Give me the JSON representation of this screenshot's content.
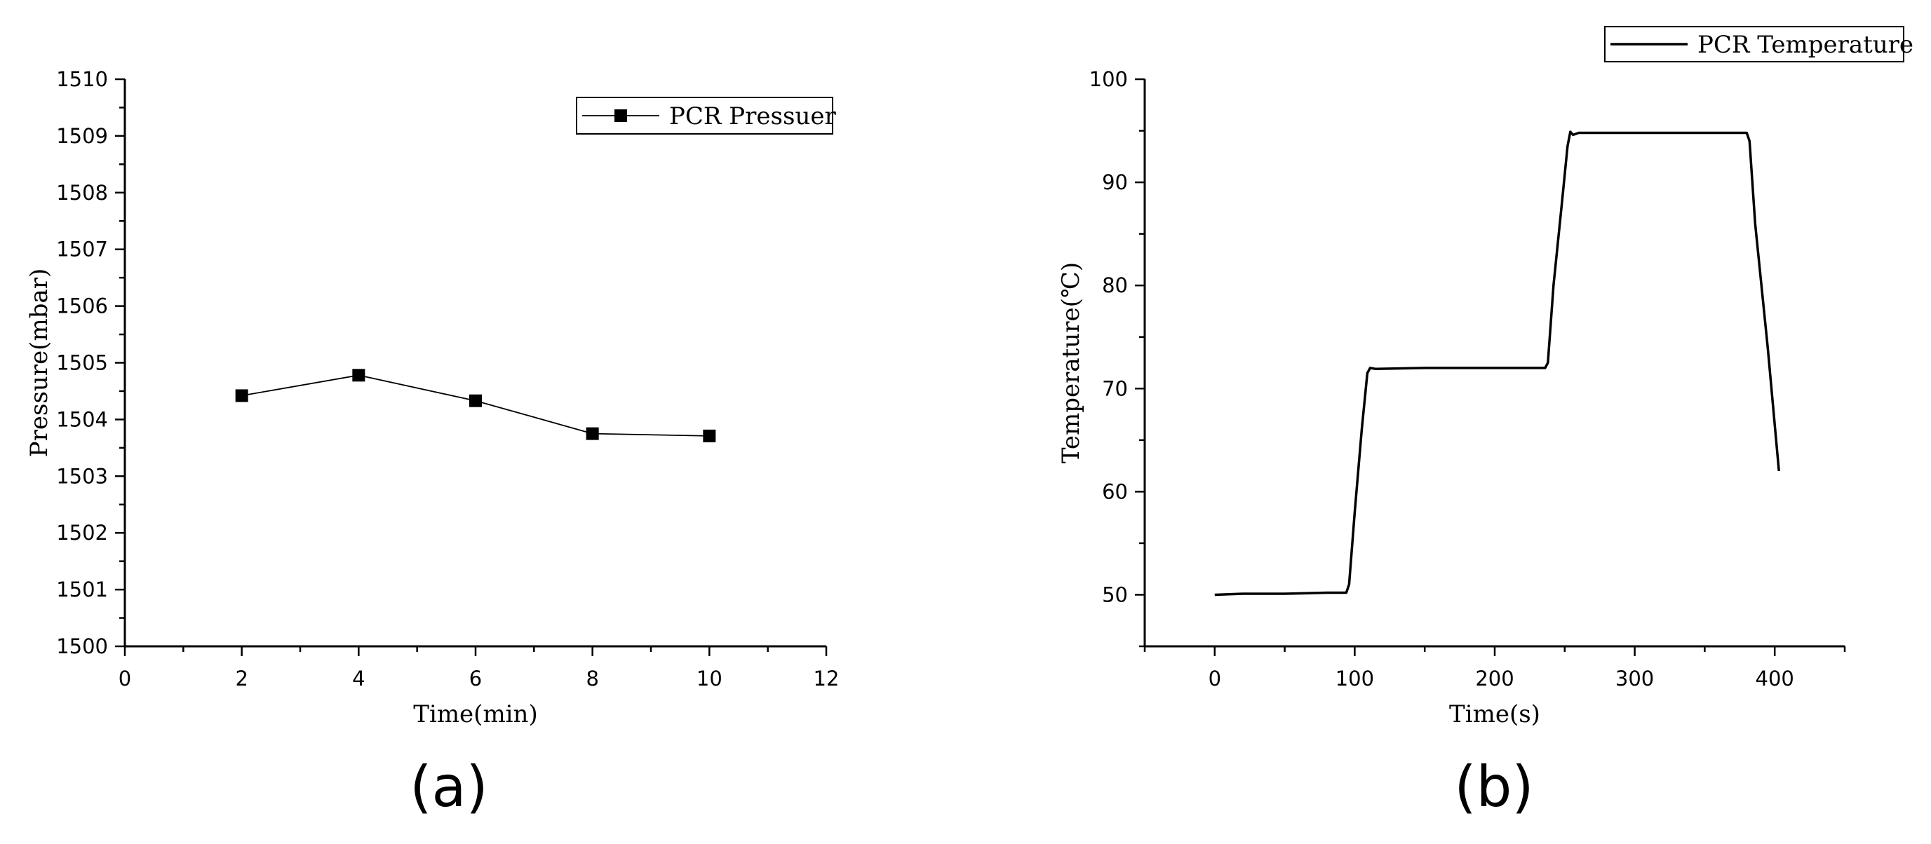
{
  "chart_data": [
    {
      "type": "line",
      "panel_label": "(a)",
      "xlabel": "Time(min)",
      "ylabel": "Pressure(mbar)",
      "xlim": [
        0,
        12
      ],
      "ylim": [
        1500,
        1510
      ],
      "x_ticks": [
        "0",
        "2",
        "4",
        "6",
        "8",
        "10",
        "12"
      ],
      "y_ticks": [
        "1500",
        "1501",
        "1502",
        "1503",
        "1504",
        "1505",
        "1506",
        "1507",
        "1508",
        "1509",
        "1510"
      ],
      "grid": false,
      "legend_position": "top-right",
      "series": [
        {
          "name": "PCR Pressuer",
          "marker": "square",
          "x": [
            2,
            4,
            6,
            8,
            10
          ],
          "y": [
            1504.42,
            1504.78,
            1504.33,
            1503.75,
            1503.71
          ]
        }
      ]
    },
    {
      "type": "line",
      "panel_label": "(b)",
      "xlabel": "Time(s)",
      "ylabel": "Temperature(℃)",
      "xlim": [
        -50,
        450
      ],
      "ylim": [
        45,
        100
      ],
      "x_ticks": [
        "0",
        "100",
        "200",
        "300",
        "400"
      ],
      "y_ticks": [
        "50",
        "60",
        "70",
        "80",
        "90",
        "100"
      ],
      "grid": false,
      "legend_position": "top-right",
      "series": [
        {
          "name": "PCR Temperature",
          "marker": "none",
          "x": [
            0,
            20,
            50,
            80,
            94,
            96,
            100,
            105,
            109,
            111,
            115,
            150,
            200,
            236,
            238,
            242,
            248,
            252,
            254,
            256,
            260,
            300,
            350,
            380,
            382,
            386,
            395,
            403
          ],
          "y": [
            50.0,
            50.1,
            50.1,
            50.2,
            50.2,
            51.0,
            58.0,
            66.0,
            71.5,
            72.0,
            71.9,
            72.0,
            72.0,
            72.0,
            72.5,
            80.0,
            88.0,
            93.5,
            94.9,
            94.6,
            94.8,
            94.8,
            94.8,
            94.8,
            94.0,
            86.0,
            74.0,
            62.0
          ]
        }
      ]
    }
  ]
}
